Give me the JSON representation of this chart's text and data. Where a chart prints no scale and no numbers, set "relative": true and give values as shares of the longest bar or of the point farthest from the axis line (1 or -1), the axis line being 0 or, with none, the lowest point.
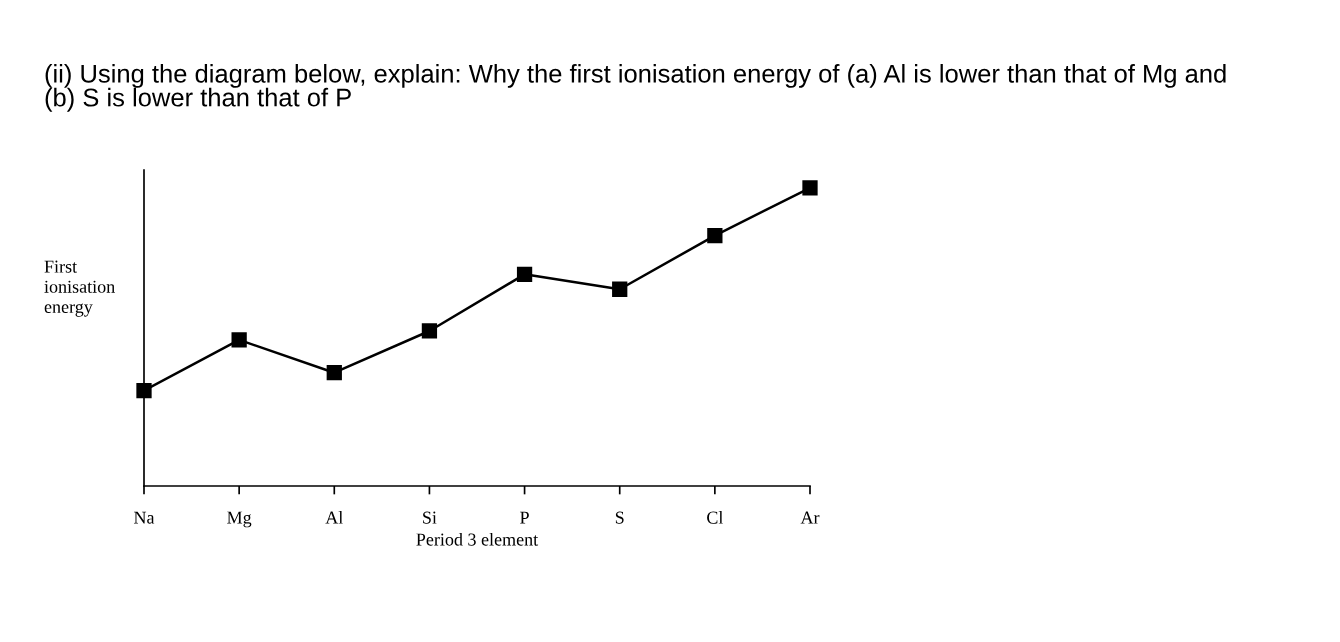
{
  "chart_data": {
    "type": "line",
    "title": "(ii) Using the diagram below, explain: Why the first ionisation energy of (a) Al is lower than that of Mg and\n(b) S is lower than that of P",
    "categories": [
      "Na",
      "Mg",
      "Al",
      "Si",
      "P",
      "S",
      "Cl",
      "Ar"
    ],
    "values": [
      0.32,
      0.49,
      0.38,
      0.52,
      0.71,
      0.66,
      0.84,
      1.0
    ],
    "relative": true,
    "color": "#000000",
    "marker": "square",
    "line_style": "solid",
    "grid": false,
    "legend": false,
    "xlabel": "Period 3 element",
    "ylabel": "First ionisation energy"
  }
}
